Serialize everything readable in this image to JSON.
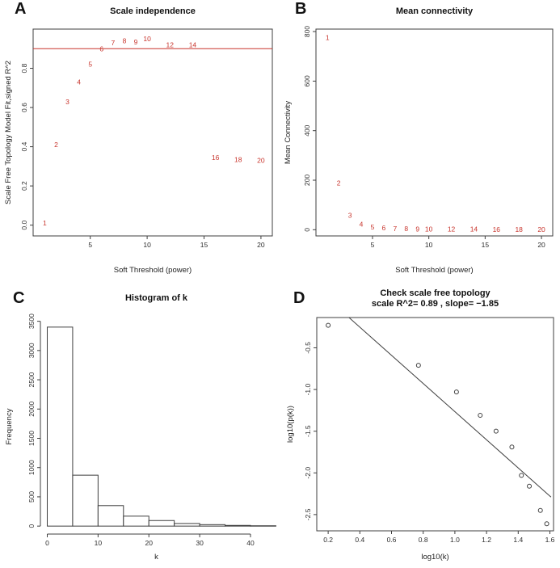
{
  "colors": {
    "accent_red": "#c8342c",
    "axis": "#3f3f3f",
    "text": "#111111",
    "background": "#ffffff"
  },
  "chart_data": [
    {
      "id": "A",
      "panel_label": "A",
      "type": "scatter-text",
      "frame": "box",
      "title": "Scale independence",
      "xlabel": "Soft Threshold (power)",
      "ylabel": "Scale Free Topology Model Fit,signed R^2",
      "xlim": [
        -0.02,
        21.0
      ],
      "ylim": [
        -0.055,
        1.0
      ],
      "xticks": [
        5,
        10,
        15,
        20
      ],
      "xtick_labels": [
        "5",
        "10",
        "15",
        "20"
      ],
      "yticks": [
        0.0,
        0.2,
        0.4,
        0.6,
        0.8
      ],
      "ytick_labels": [
        "0.0",
        "0.2",
        "0.4",
        "0.6",
        "0.8"
      ],
      "color": "#c8342c",
      "hline": {
        "y": 0.9,
        "color": "#c8342c"
      },
      "points": {
        "x": [
          1,
          2,
          3,
          4,
          5,
          6,
          7,
          8,
          9,
          10,
          12,
          14,
          16,
          18,
          20
        ],
        "y": [
          0.01,
          0.41,
          0.63,
          0.73,
          0.82,
          0.9,
          0.93,
          0.94,
          0.935,
          0.95,
          0.92,
          0.92,
          0.345,
          0.335,
          0.33
        ],
        "labels": [
          "1",
          "2",
          "3",
          "4",
          "5",
          "6",
          "7",
          "8",
          "9",
          "10",
          "12",
          "14",
          "16",
          "18",
          "20"
        ]
      }
    },
    {
      "id": "B",
      "panel_label": "B",
      "type": "scatter-text",
      "frame": "box",
      "title": "Mean connectivity",
      "xlabel": "Soft Threshold (power)",
      "ylabel": "Mean Connectivity",
      "xlim": [
        -0.02,
        21.0
      ],
      "ylim": [
        -25,
        810
      ],
      "xticks": [
        5,
        10,
        15,
        20
      ],
      "xtick_labels": [
        "5",
        "10",
        "15",
        "20"
      ],
      "yticks": [
        0,
        200,
        400,
        600,
        800
      ],
      "ytick_labels": [
        "0",
        "200",
        "400",
        "600",
        "800"
      ],
      "color": "#c8342c",
      "points": {
        "x": [
          1,
          2,
          3,
          4,
          5,
          6,
          7,
          8,
          9,
          10,
          12,
          14,
          16,
          18,
          20
        ],
        "y": [
          775,
          188,
          58,
          22,
          11,
          7,
          5,
          4,
          3,
          3,
          2,
          2,
          1.5,
          1.5,
          1
        ],
        "labels": [
          "1",
          "2",
          "3",
          "4",
          "5",
          "6",
          "7",
          "8",
          "9",
          "10",
          "12",
          "14",
          "16",
          "18",
          "20"
        ]
      }
    },
    {
      "id": "C",
      "panel_label": "C",
      "type": "histogram",
      "frame": "axes",
      "title": "Histogram of k",
      "xlabel": "k",
      "ylabel": "Frequency",
      "xlim": [
        -1.35,
        44.3
      ],
      "ylim": [
        -136,
        3536
      ],
      "xticks": [
        0,
        10,
        20,
        30,
        40
      ],
      "xtick_labels": [
        "0",
        "10",
        "20",
        "30",
        "40"
      ],
      "yticks": [
        0,
        500,
        1000,
        1500,
        2000,
        2500,
        3000,
        3500
      ],
      "ytick_labels": [
        "0",
        "500",
        "1000",
        "1500",
        "2000",
        "2500",
        "3000",
        "3500"
      ],
      "bins": {
        "start": 0,
        "width": 5,
        "counts": [
          3400,
          870,
          350,
          170,
          95,
          45,
          25,
          12,
          6
        ]
      }
    },
    {
      "id": "D",
      "panel_label": "D",
      "type": "scatter-line",
      "frame": "box",
      "title": "Check scale free topology",
      "subtitle": "scale R^2= 0.89 , slope= −1.85",
      "xlabel": "log10(k)",
      "ylabel": "log10(p(k))",
      "xlim": [
        0.128,
        1.623
      ],
      "ylim": [
        -2.695,
        -0.137
      ],
      "xticks": [
        0.2,
        0.4,
        0.6,
        0.8,
        1.0,
        1.2,
        1.4,
        1.6
      ],
      "xtick_labels": [
        "0.2",
        "0.4",
        "0.6",
        "0.8",
        "1.0",
        "1.2",
        "1.4",
        "1.6"
      ],
      "yticks": [
        -2.5,
        -2.0,
        -1.5,
        -1.0,
        -0.5
      ],
      "ytick_labels": [
        "-2.5",
        "-2.0",
        "-1.5",
        "-1.0",
        "-0.5"
      ],
      "points": {
        "x": [
          0.2,
          0.77,
          1.01,
          1.16,
          1.26,
          1.36,
          1.42,
          1.47,
          1.54,
          1.58
        ],
        "y": [
          -0.23,
          -0.71,
          -1.03,
          -1.31,
          -1.5,
          -1.69,
          -2.03,
          -2.16,
          -2.45,
          -2.61
        ]
      },
      "fit_line": {
        "x1": 0.33,
        "y1": -0.135,
        "x2": 1.607,
        "y2": -2.29
      }
    }
  ]
}
